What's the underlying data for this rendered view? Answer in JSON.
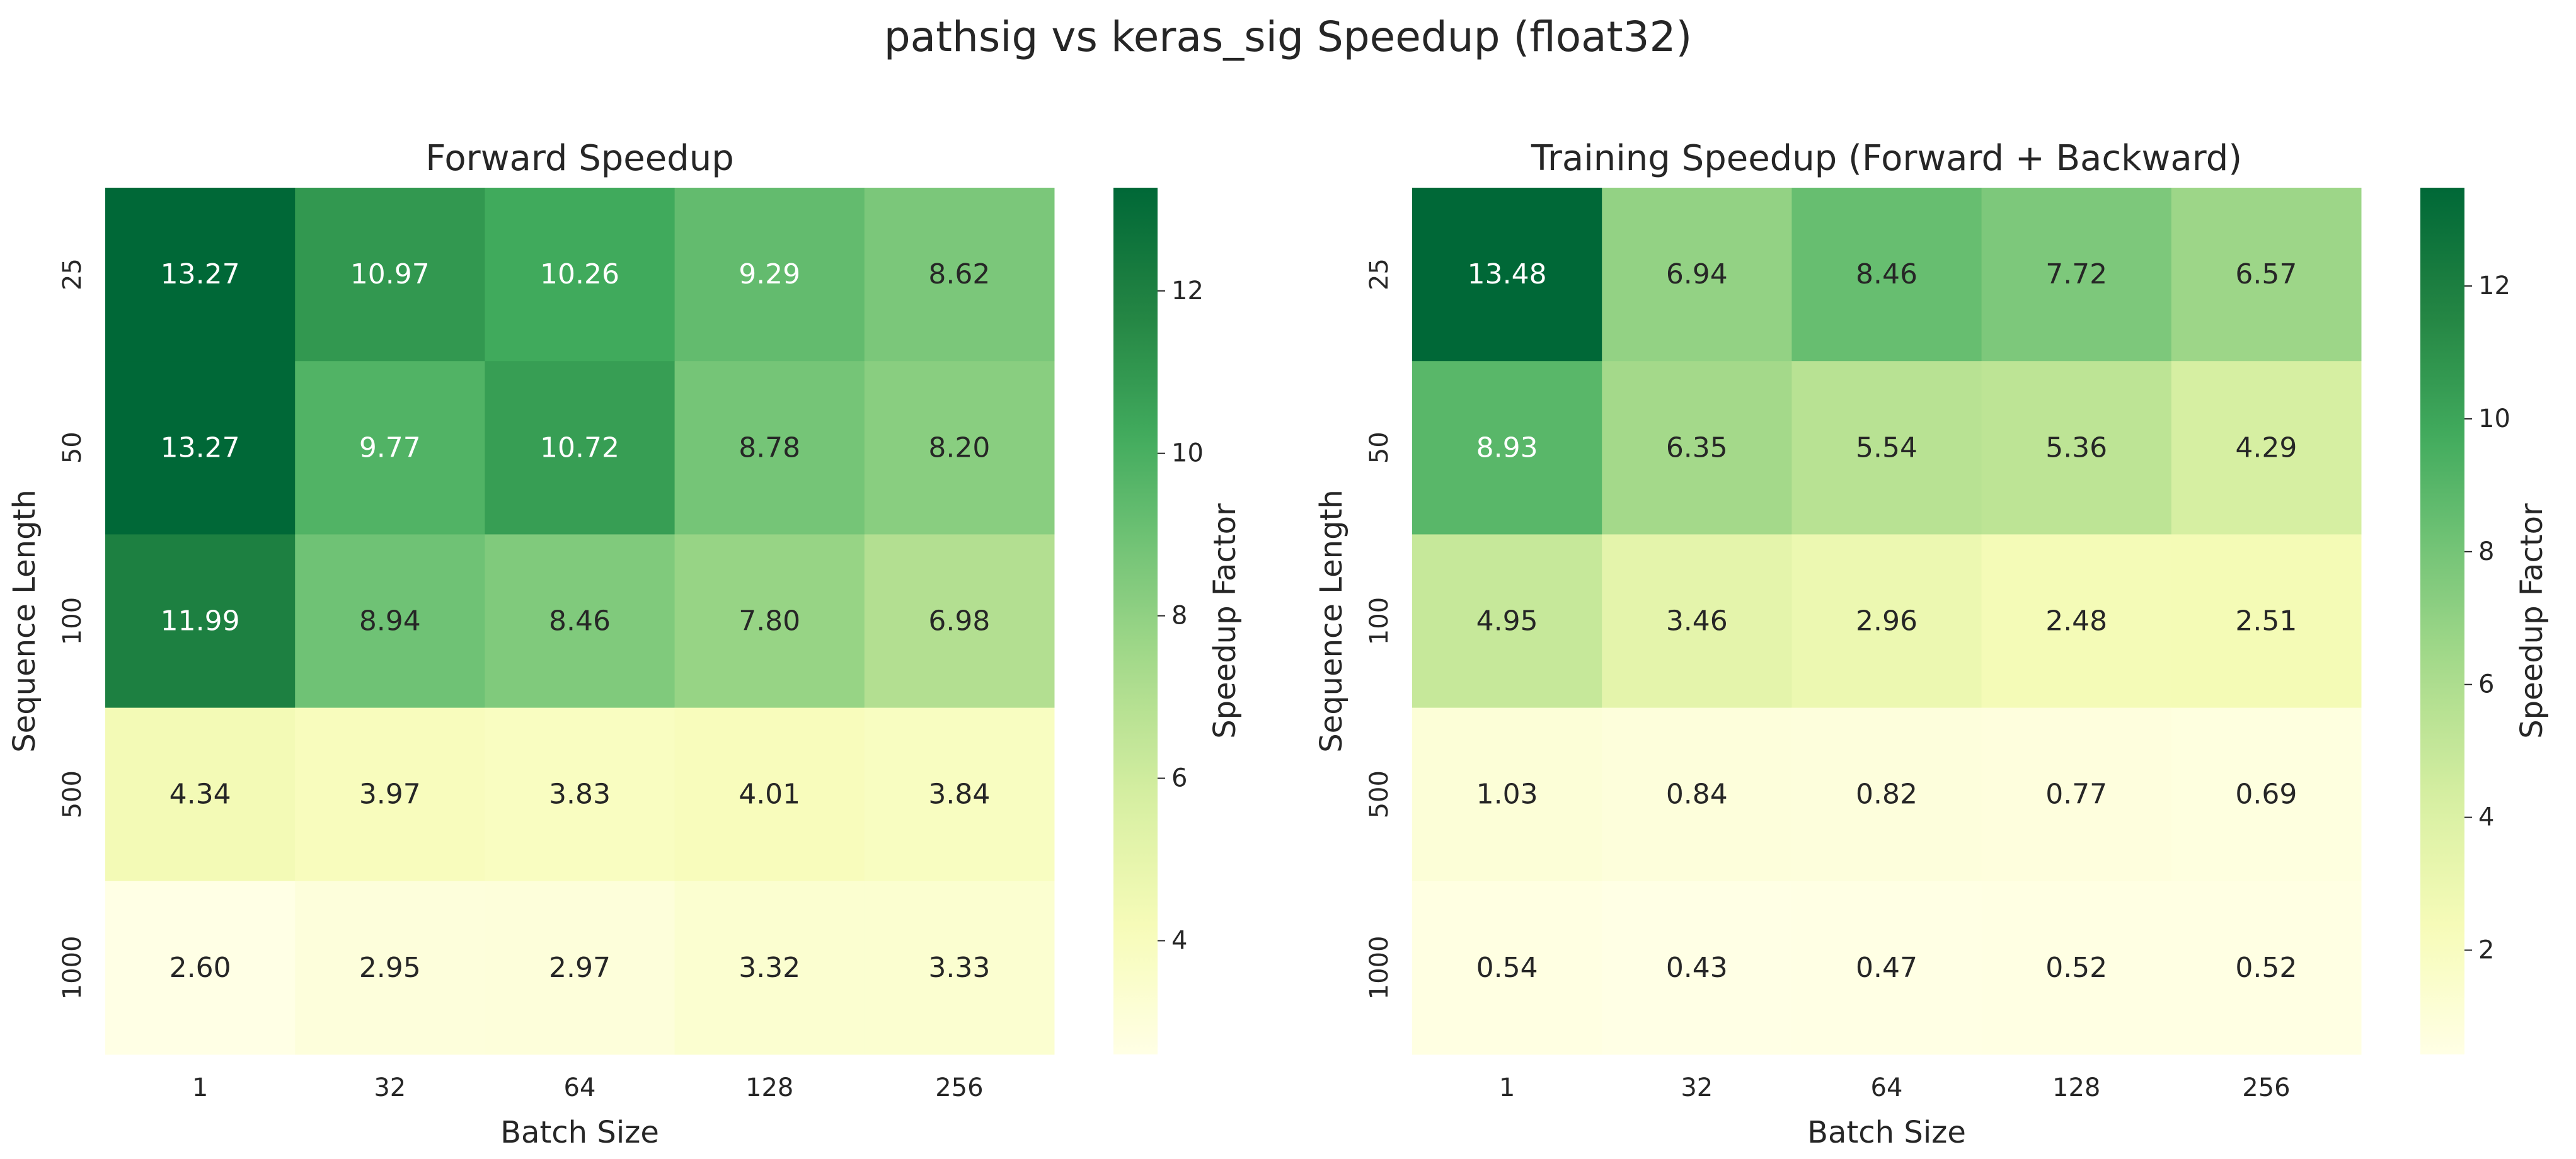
{
  "figure": {
    "suptitle": "pathsig vs keras_sig Speedup (float32)"
  },
  "chart_data": [
    {
      "type": "heatmap",
      "title": "Forward Speedup",
      "xlabel": "Batch Size",
      "ylabel": "Sequence Length",
      "x": [
        "1",
        "32",
        "64",
        "128",
        "256"
      ],
      "y": [
        "25",
        "50",
        "100",
        "500",
        "1000"
      ],
      "values": [
        [
          13.27,
          10.97,
          10.26,
          9.29,
          8.62
        ],
        [
          13.27,
          9.77,
          10.72,
          8.78,
          8.2
        ],
        [
          11.99,
          8.94,
          8.46,
          7.8,
          6.98
        ],
        [
          4.34,
          3.97,
          3.83,
          4.01,
          3.84
        ],
        [
          2.6,
          2.95,
          2.97,
          3.32,
          3.33
        ]
      ],
      "colorbar": {
        "label": "Speedup Factor",
        "range": [
          2.6,
          13.27
        ],
        "ticks": [
          4,
          6,
          8,
          10,
          12
        ]
      },
      "colormap": "YlGn",
      "grid": false,
      "legend": "none"
    },
    {
      "type": "heatmap",
      "title": "Training Speedup (Forward + Backward)",
      "xlabel": "Batch Size",
      "ylabel": "Sequence Length",
      "x": [
        "1",
        "32",
        "64",
        "128",
        "256"
      ],
      "y": [
        "25",
        "50",
        "100",
        "500",
        "1000"
      ],
      "values": [
        [
          13.48,
          6.94,
          8.46,
          7.72,
          6.57
        ],
        [
          8.93,
          6.35,
          5.54,
          5.36,
          4.29
        ],
        [
          4.95,
          3.46,
          2.96,
          2.48,
          2.51
        ],
        [
          1.03,
          0.84,
          0.82,
          0.77,
          0.69
        ],
        [
          0.54,
          0.43,
          0.47,
          0.52,
          0.52
        ]
      ],
      "colorbar": {
        "label": "Speedup Factor",
        "range": [
          0.43,
          13.48
        ],
        "ticks": [
          2,
          4,
          6,
          8,
          10,
          12
        ]
      },
      "colormap": "YlGn",
      "grid": false,
      "legend": "none"
    }
  ]
}
